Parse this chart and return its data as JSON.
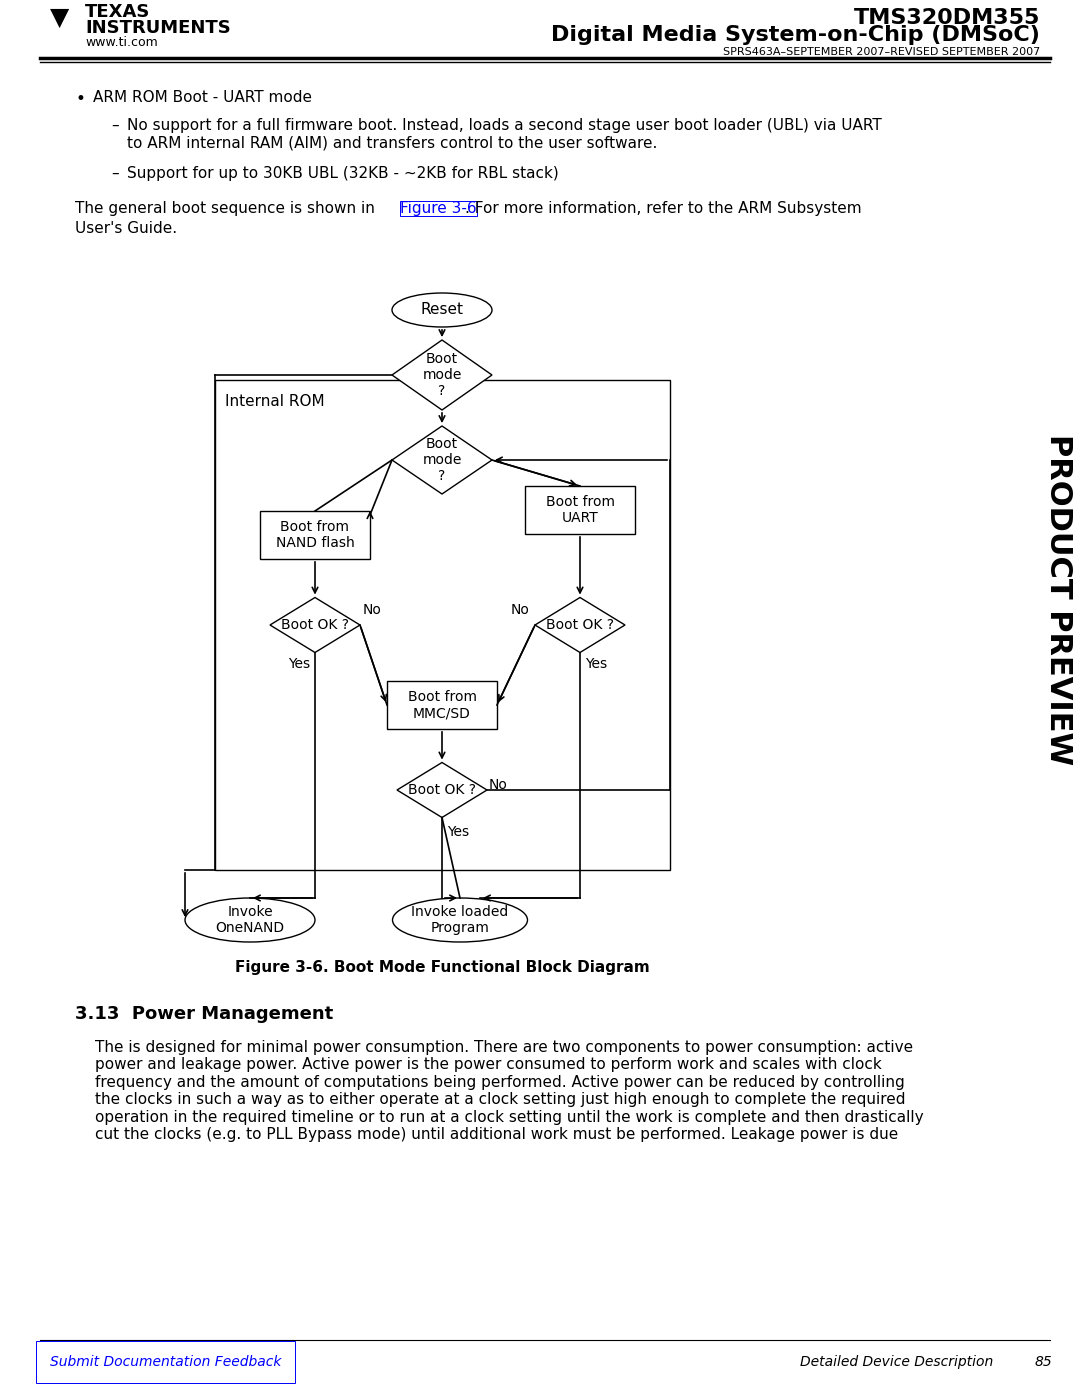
{
  "title_right_line1": "TMS320DM355",
  "title_right_line2": "Digital Media System-on-Chip (DMSoC)",
  "subtitle_right": "SPRS463A–SEPTEMBER 2007–REVISED SEPTEMBER 2007",
  "logo_text1": "TEXAS",
  "logo_text2": "INSTRUMENTS",
  "logo_url": "www.ti.com",
  "bullet_main": "ARM ROM Boot - UART mode",
  "bullet_sub1": "No support for a full firmware boot. Instead, loads a second stage user boot loader (UBL) via UART\nto ARM internal RAM (AIM) and transfers control to the user software.",
  "bullet_sub2": "Support for up to 30KB UBL (32KB - ~2KB for RBL stack)",
  "para1": "The general boot sequence is shown in Figure 3-6. For more information, refer to the ARM Subsystem\nUser's Guide.",
  "figure_caption": "Figure 3-6. Boot Mode Functional Block Diagram",
  "section_title": "3.13  Power Management",
  "section_body": "The is designed for minimal power consumption. There are two components to power consumption: active\npower and leakage power. Active power is the power consumed to perform work and scales with clock\nfrequency and the amount of computations being performed. Active power can be reduced by controlling\nthe clocks in such a way as to either operate at a clock setting just high enough to complete the required\noperation in the required timeline or to run at a clock setting until the work is complete and then drastically\ncut the clocks (e.g. to PLL Bypass mode) until additional work must be performed. Leakage power is due",
  "footer_left": "Submit Documentation Feedback",
  "footer_right": "Detailed Device Description",
  "footer_page": "85",
  "product_preview_text": "PRODUCT PREVIEW",
  "bg_color": "#ffffff",
  "text_color": "#000000",
  "link_color": "#0000ff",
  "header_line_color": "#000000",
  "box_color": "#000000",
  "diagram_bg": "#ffffff"
}
